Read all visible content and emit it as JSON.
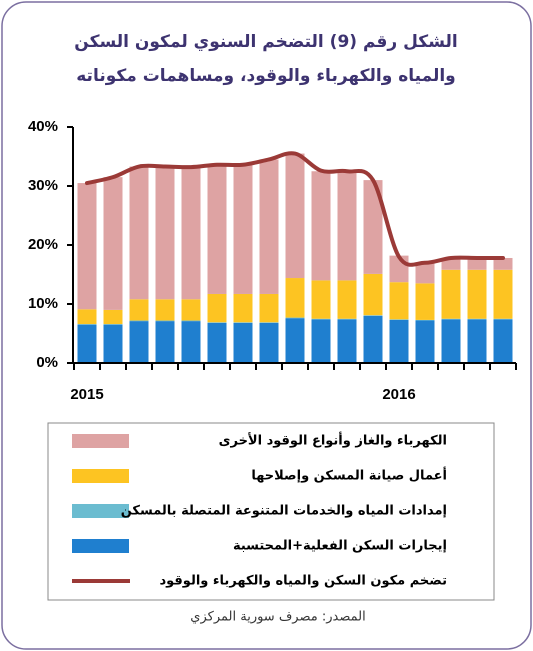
{
  "chart_data": {
    "type": "bar",
    "stacked": true,
    "title": [
      "الشكل رقم (9) التضخم السنوي لمكون السكن",
      "والمياه والكهرباء والوقود، ومساهمات مكوناته"
    ],
    "categories": [
      "2015",
      null,
      null,
      null,
      null,
      null,
      null,
      null,
      null,
      null,
      null,
      null,
      "2016",
      null,
      null,
      null,
      null
    ],
    "series": [
      {
        "name": "إيجارات السكن الفعلية+المحتسبة",
        "color": "#1f7fcf",
        "values": [
          6.5,
          6.5,
          7.1,
          7.1,
          7.1,
          6.8,
          6.8,
          6.8,
          7.6,
          7.4,
          7.4,
          8.0,
          7.3,
          7.2,
          7.4,
          7.4,
          7.4
        ]
      },
      {
        "name": "إمدادات المياه والخدمات المتنوعة المتصلة بالمسكن",
        "color": "#6bbcd0",
        "values": [
          0.1,
          0.1,
          0.1,
          0.1,
          0.1,
          0.1,
          0.1,
          0.1,
          0.1,
          0.1,
          0.1,
          0.1,
          0.1,
          0.1,
          0.1,
          0.1,
          0.1
        ]
      },
      {
        "name": "أعمال صيانة المسكن وإصلاحها",
        "color": "#fdc422",
        "values": [
          2.5,
          2.4,
          3.6,
          3.6,
          3.6,
          4.8,
          4.8,
          4.8,
          6.7,
          6.5,
          6.5,
          7.0,
          6.3,
          6.2,
          8.3,
          8.3,
          8.3
        ]
      },
      {
        "name": "الكهرباء والغاز وأنواع الوقود الأخرى",
        "color": "#dea3a3",
        "values": [
          21.4,
          22.5,
          22.5,
          22.5,
          22.4,
          21.8,
          21.8,
          22.8,
          21.1,
          18.5,
          18.5,
          15.9,
          4.5,
          3.4,
          2.0,
          2.0,
          2.0
        ]
      },
      {
        "name": "تضخم مكون السكن والمياه والكهرباء والوقود",
        "color": "#9b3a37",
        "type": "line",
        "values": [
          30.5,
          31.5,
          33.3,
          33.3,
          33.2,
          33.6,
          33.6,
          34.5,
          35.5,
          32.6,
          32.5,
          31.0,
          18.0,
          17.0,
          17.8,
          17.8,
          17.8
        ]
      }
    ],
    "ylim": [
      0,
      40
    ],
    "yticks": [
      {
        "value": 0,
        "label": "0%"
      },
      {
        "value": 10,
        "label": "10%"
      },
      {
        "value": 20,
        "label": "20%"
      },
      {
        "value": 30,
        "label": "30%"
      },
      {
        "value": 40,
        "label": "40%"
      }
    ],
    "source": "المصدر: مصرف سورية المركزي"
  }
}
